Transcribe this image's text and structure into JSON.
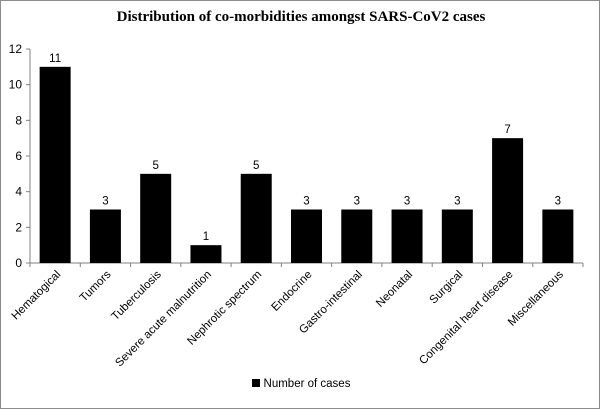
{
  "chart_data": {
    "type": "bar",
    "title": "Distribution of co-morbidities amongst SARS-CoV2 cases",
    "categories": [
      "Hematogical",
      "Tumors",
      "Tuberculosis",
      "Severe acute malnutrition",
      "Nephrotic spectrum",
      "Endocrine",
      "Gastro-intestinal",
      "Neonatal",
      "Surgical",
      "Congenital heart disease",
      "Miscellaneous"
    ],
    "series": [
      {
        "name": "Number of cases",
        "values": [
          11,
          3,
          5,
          1,
          5,
          3,
          3,
          3,
          3,
          7,
          3
        ]
      }
    ],
    "ylim": [
      0,
      12
    ],
    "yticks": [
      0,
      2,
      4,
      6,
      8,
      10,
      12
    ],
    "grid": false,
    "legend_position": "bottom",
    "bar_color": "#000000"
  }
}
